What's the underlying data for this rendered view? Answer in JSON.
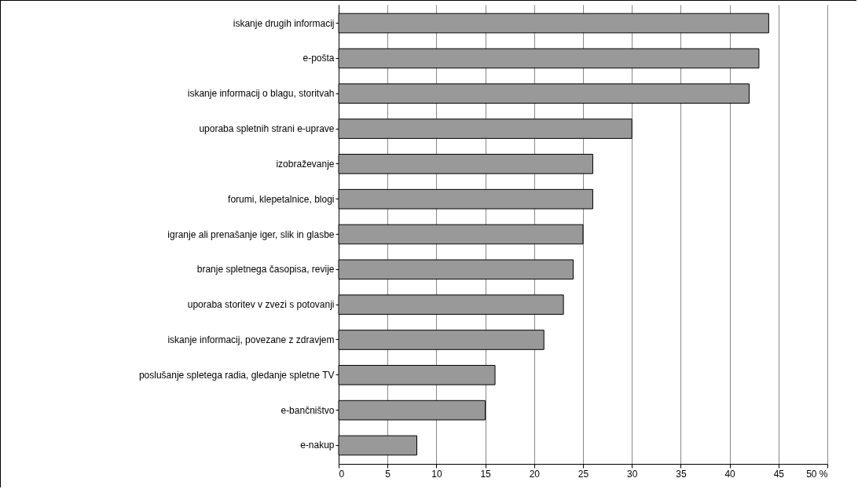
{
  "chart_data": {
    "type": "bar",
    "orientation": "horizontal",
    "categories": [
      "iskanje drugih informacij",
      "e-pošta",
      "iskanje informacij o blagu, storitvah",
      "uporaba spletnih strani e-uprave",
      "izobraževanje",
      "forumi, klepetalnice, blogi",
      "igranje ali prenašanje iger, slik in glasbe",
      "branje spletnega časopisa, revije",
      "uporaba storitev v zvezi s potovanji",
      "iskanje informacij, povezane z zdravjem",
      "poslušanje spletega radia, gledanje spletne TV",
      "e-bančništvo",
      "e-nakup"
    ],
    "values": [
      44,
      43,
      42,
      30,
      26,
      26,
      25,
      24,
      23,
      21,
      16,
      15,
      8
    ],
    "color": "#999999",
    "xlim": [
      0,
      50
    ],
    "xticks": [
      0,
      5,
      10,
      15,
      20,
      25,
      30,
      35,
      40,
      45,
      {
        "value": 50,
        "label": "50 %"
      }
    ],
    "grid": "x"
  }
}
